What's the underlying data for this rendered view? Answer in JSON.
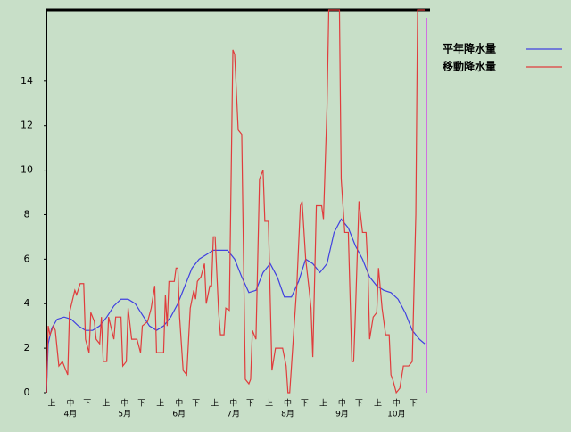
{
  "chart_data": {
    "type": "line",
    "xlim": [
      0,
      214
    ],
    "ylim": [
      0,
      17.2
    ],
    "yticks": [
      0,
      2,
      4,
      6,
      8,
      10,
      12,
      14
    ],
    "period_labels": [
      "上",
      "中",
      "下"
    ],
    "months": [
      "4月",
      "5月",
      "6月",
      "7月",
      "8月",
      "9月",
      "10月"
    ],
    "series": [
      {
        "name": "平年降水量",
        "color": "#4040e0",
        "x": [
          0,
          1,
          3,
          6,
          10,
          14,
          18,
          22,
          26,
          30,
          34,
          38,
          42,
          46,
          50,
          54,
          58,
          62,
          66,
          70,
          74,
          78,
          82,
          86,
          90,
          94,
          98,
          102,
          106,
          110,
          114,
          118,
          122,
          126,
          130,
          134,
          138,
          142,
          146,
          150,
          154,
          158,
          162,
          166,
          170,
          174,
          178,
          182,
          186,
          190,
          194,
          198,
          202,
          206,
          210,
          213
        ],
        "values": [
          0,
          2.2,
          2.9,
          3.3,
          3.4,
          3.3,
          3.0,
          2.8,
          2.8,
          3.0,
          3.4,
          3.9,
          4.2,
          4.2,
          4.0,
          3.5,
          3.0,
          2.8,
          3.0,
          3.4,
          4.0,
          4.8,
          5.6,
          6.0,
          6.2,
          6.4,
          6.4,
          6.4,
          6.0,
          5.2,
          4.5,
          4.6,
          5.4,
          5.8,
          5.2,
          4.3,
          4.3,
          5.0,
          6.0,
          5.8,
          5.4,
          5.8,
          7.2,
          7.8,
          7.4,
          6.6,
          6.0,
          5.2,
          4.8,
          4.6,
          4.5,
          4.2,
          3.6,
          2.8,
          2.4,
          2.2
        ]
      },
      {
        "name": "移動降水量",
        "color": "#e03c3c",
        "x": [
          0,
          1,
          2,
          4,
          5,
          7,
          9,
          12,
          13,
          16,
          17,
          19,
          21,
          22,
          24,
          25,
          27,
          28,
          30,
          31,
          32,
          34,
          35,
          38,
          39,
          42,
          43,
          45,
          46,
          48,
          51,
          53,
          54,
          57,
          59,
          61,
          62,
          64,
          66,
          67,
          68,
          69,
          72,
          73,
          74,
          75,
          77,
          79,
          81,
          83,
          84,
          85,
          87,
          89,
          90,
          92,
          93,
          94,
          95,
          97,
          98,
          100,
          101,
          103,
          105,
          106,
          108,
          110,
          112,
          114,
          115,
          116,
          118,
          120,
          122,
          123,
          125,
          127,
          129,
          131,
          133,
          135,
          136,
          137,
          139,
          141,
          143,
          144,
          146,
          148,
          149,
          150,
          152,
          154,
          155,
          156,
          158,
          159,
          165,
          166,
          168,
          170,
          172,
          173,
          174,
          176,
          178,
          180,
          181,
          182,
          184,
          186,
          187,
          189,
          191,
          193,
          194,
          195,
          197,
          199,
          201,
          204,
          206,
          208,
          209,
          211,
          213
        ],
        "values": [
          0,
          3.0,
          2.6,
          3.0,
          2.8,
          1.2,
          1.4,
          0.8,
          3.6,
          4.6,
          4.4,
          4.9,
          4.9,
          2.4,
          1.8,
          3.6,
          3.2,
          2.4,
          2.2,
          3.4,
          1.4,
          1.4,
          3.4,
          2.4,
          3.4,
          3.4,
          1.2,
          1.4,
          3.8,
          2.4,
          2.4,
          1.8,
          3.0,
          3.2,
          3.8,
          4.8,
          1.8,
          1.8,
          1.8,
          4.4,
          3.0,
          5.0,
          5.0,
          5.6,
          5.6,
          3.4,
          1.0,
          0.8,
          3.8,
          4.6,
          4.2,
          5.0,
          5.2,
          5.8,
          4.0,
          4.8,
          4.8,
          7.0,
          7.0,
          3.6,
          2.6,
          2.6,
          3.8,
          3.7,
          15.4,
          15.2,
          11.8,
          11.6,
          0.6,
          0.4,
          0.6,
          2.8,
          2.4,
          9.6,
          10.0,
          7.7,
          7.7,
          1.0,
          2.0,
          2.0,
          2.0,
          1.2,
          0,
          0,
          2.4,
          4.8,
          8.4,
          8.6,
          6.0,
          4.6,
          3.8,
          1.6,
          8.4,
          8.4,
          8.4,
          7.8,
          12.8,
          17.2,
          17.2,
          9.6,
          7.2,
          7.2,
          1.4,
          1.4,
          3.6,
          8.6,
          7.2,
          7.2,
          5.6,
          2.4,
          3.4,
          3.6,
          5.6,
          3.8,
          2.6,
          2.6,
          0.8,
          0.6,
          0,
          0.2,
          1.2,
          1.2,
          1.4,
          8.0,
          17.2,
          17.2,
          17.2
        ]
      }
    ]
  }
}
